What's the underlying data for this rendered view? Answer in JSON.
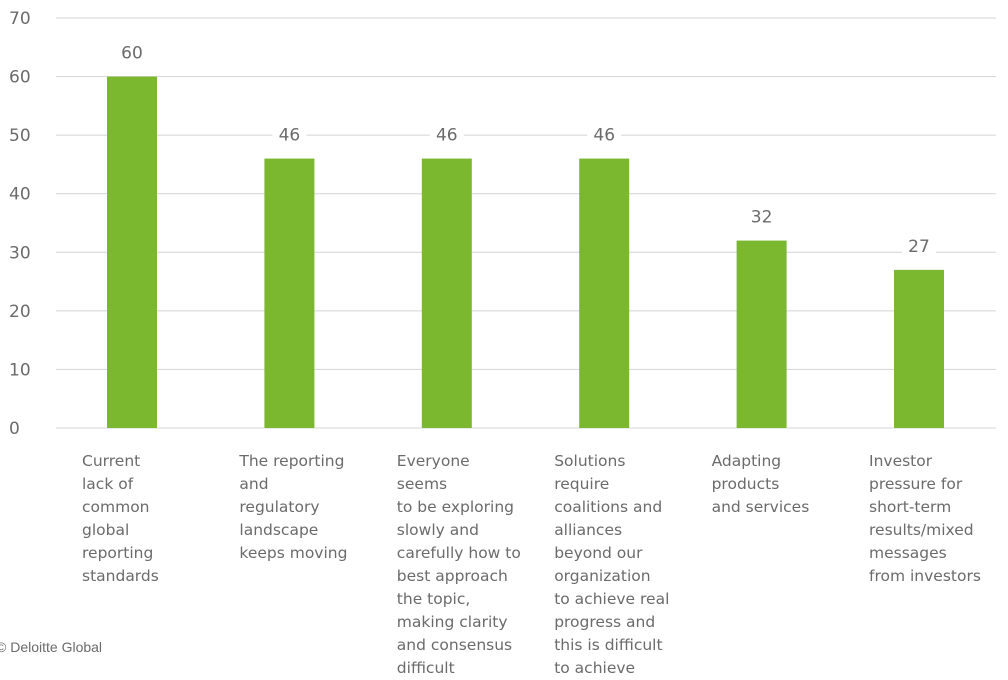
{
  "chart_data": {
    "type": "bar",
    "categories": [
      "Current\nlack of\ncommon\nglobal\nreporting\nstandards",
      "The reporting\nand\nregulatory\nlandscape\nkeeps moving",
      "Everyone seems\nto be exploring\nslowly and\ncarefully how to\nbest approach\nthe topic,\nmaking clarity\nand consensus\ndifficult",
      "Solutions\nrequire\ncoalitions and\nalliances\nbeyond our\norganization\nto achieve real\nprogress and\nthis is difficult\nto achieve",
      "Adapting\nproducts\nand services",
      "Investor\npressure for\nshort-term\nresults/mixed\nmessages\nfrom investors"
    ],
    "values": [
      60,
      46,
      46,
      46,
      32,
      27
    ],
    "ylim": [
      0,
      70
    ],
    "yticks": [
      0,
      10,
      20,
      30,
      40,
      50,
      60,
      70
    ],
    "grid": true,
    "bar_color": "#7cb82f"
  },
  "footer": "© Deloitte Global"
}
